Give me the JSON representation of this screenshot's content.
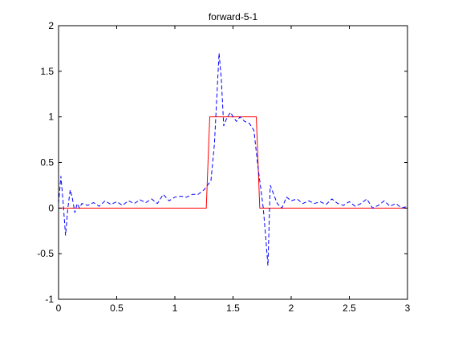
{
  "chart_data": {
    "type": "line",
    "title": "forward-5-1",
    "xlabel": "",
    "ylabel": "",
    "xlim": [
      0,
      3
    ],
    "ylim": [
      -1,
      2
    ],
    "x_ticks": [
      0,
      0.5,
      1,
      1.5,
      2,
      2.5,
      3
    ],
    "x_tick_labels": [
      "0",
      "0.5",
      "1",
      "1.5",
      "2",
      "2.5",
      "3"
    ],
    "y_ticks": [
      -1,
      -0.5,
      0,
      0.5,
      1,
      1.5,
      2
    ],
    "y_tick_labels": [
      "-1",
      "-0.5",
      "0",
      "0.5",
      "1",
      "1.5",
      "2"
    ],
    "grid": false,
    "legend": "none",
    "series": [
      {
        "color": "#ff0000",
        "style": "solid",
        "x": [
          0,
          1.27,
          1.3,
          1.7,
          1.73,
          3
        ],
        "y": [
          0,
          0,
          1,
          1,
          0,
          0
        ]
      },
      {
        "color": "#0000ff",
        "style": "dashed",
        "x": [
          0,
          0.02,
          0.04,
          0.06,
          0.08,
          0.1,
          0.12,
          0.14,
          0.16,
          0.18,
          0.2,
          0.25,
          0.3,
          0.35,
          0.4,
          0.45,
          0.5,
          0.55,
          0.6,
          0.65,
          0.7,
          0.75,
          0.8,
          0.85,
          0.9,
          0.95,
          1.0,
          1.05,
          1.1,
          1.15,
          1.2,
          1.25,
          1.28,
          1.31,
          1.34,
          1.36,
          1.38,
          1.4,
          1.42,
          1.45,
          1.48,
          1.5,
          1.53,
          1.56,
          1.6,
          1.64,
          1.68,
          1.71,
          1.74,
          1.76,
          1.78,
          1.8,
          1.82,
          1.85,
          1.88,
          1.92,
          1.96,
          2.0,
          2.05,
          2.1,
          2.15,
          2.2,
          2.25,
          2.3,
          2.35,
          2.4,
          2.45,
          2.5,
          2.55,
          2.6,
          2.65,
          2.7,
          2.75,
          2.8,
          2.85,
          2.9,
          2.95,
          3.0
        ],
        "y": [
          0.05,
          0.35,
          0.05,
          -0.3,
          0.0,
          0.2,
          0.1,
          -0.05,
          0.05,
          0.0,
          0.05,
          0.03,
          0.06,
          0.02,
          0.08,
          0.04,
          0.07,
          0.03,
          0.08,
          0.05,
          0.09,
          0.06,
          0.1,
          0.05,
          0.15,
          0.08,
          0.12,
          0.13,
          0.12,
          0.15,
          0.15,
          0.2,
          0.25,
          0.3,
          0.7,
          1.2,
          1.7,
          1.4,
          0.9,
          1.0,
          1.05,
          1.0,
          0.95,
          1.0,
          0.95,
          0.93,
          0.85,
          0.5,
          0.2,
          0.0,
          -0.3,
          -0.63,
          0.25,
          0.15,
          0.05,
          0.0,
          0.12,
          0.08,
          0.1,
          0.05,
          0.08,
          0.05,
          0.07,
          0.04,
          0.1,
          0.05,
          0.03,
          0.07,
          0.02,
          0.05,
          0.1,
          0.0,
          0.03,
          0.08,
          0.02,
          0.05,
          0.0,
          0.02
        ]
      }
    ]
  }
}
